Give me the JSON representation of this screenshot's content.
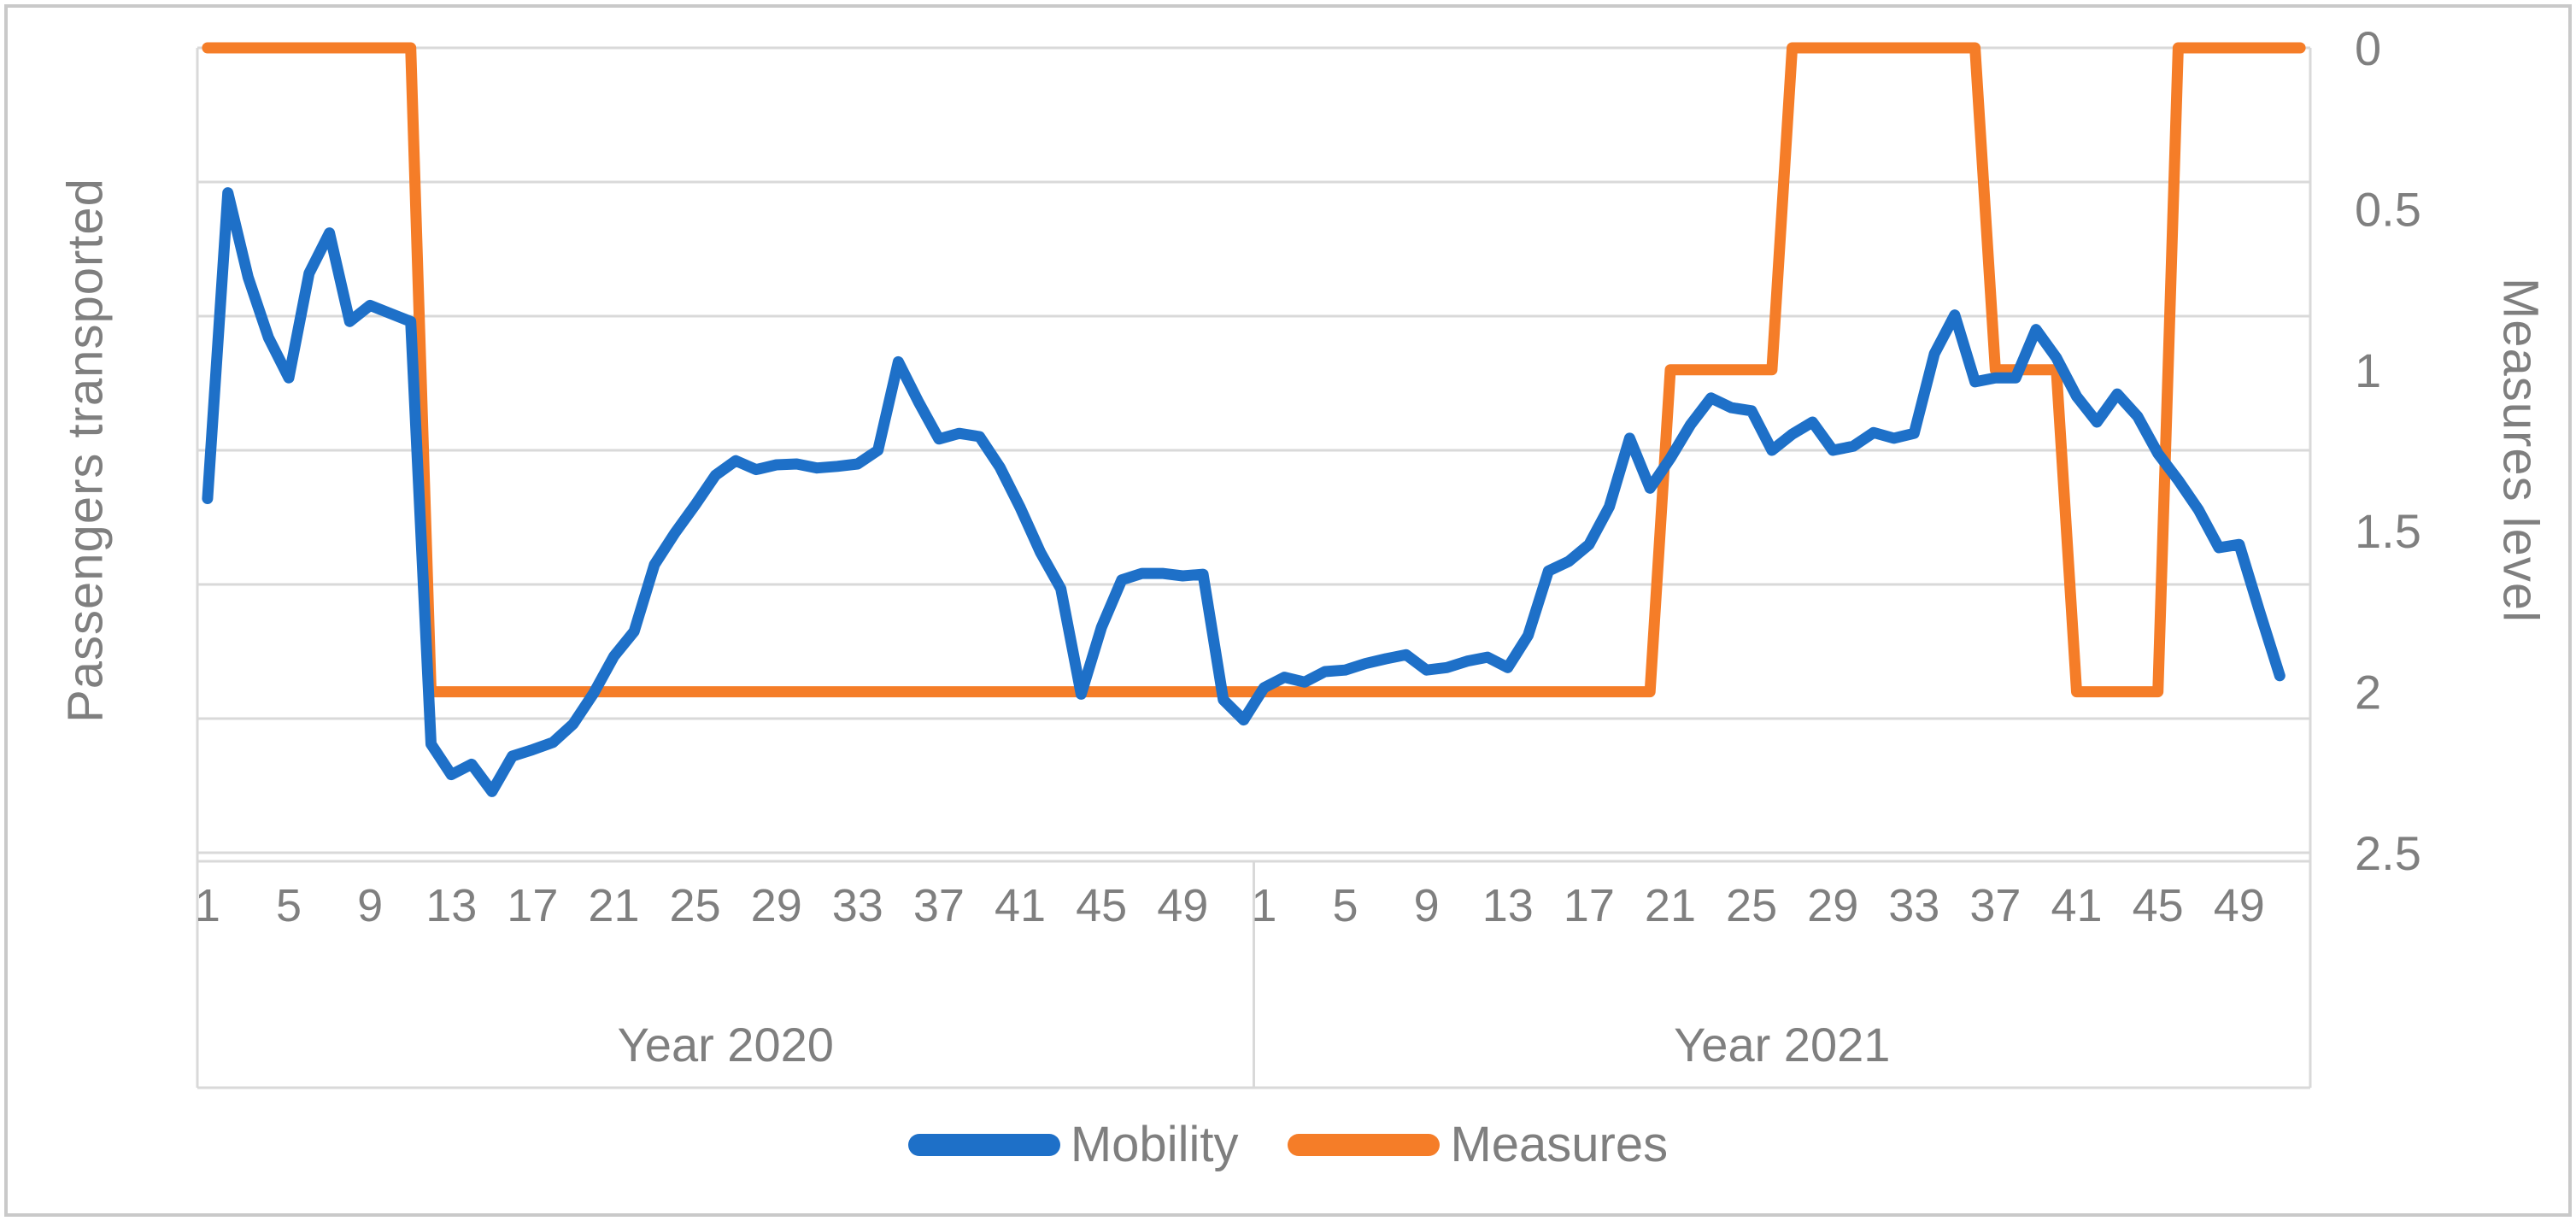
{
  "chart_data": {
    "type": "line",
    "title": "",
    "x_axis": {
      "years": [
        {
          "label": "Year 2020",
          "weeks": 52
        },
        {
          "label": "Year 2021",
          "weeks": 52
        }
      ],
      "tick_weeks": [
        1,
        5,
        9,
        13,
        17,
        21,
        25,
        29,
        33,
        37,
        41,
        45,
        49
      ]
    },
    "left_axis": {
      "title": "Passengers transported",
      "tick_labels_visible": false,
      "note": "unlabeled axis; mobility values stored as relative index 0-100 of plot height",
      "gridline_divisions": 6
    },
    "right_axis": {
      "title": "Measures level",
      "ticks": [
        "0",
        "0.5",
        "1",
        "1.5",
        "2",
        "2.5"
      ],
      "range": [
        0,
        2.5
      ],
      "orientation": "0 at top, 2.5 at bottom"
    },
    "legend": {
      "items": [
        {
          "label": "Mobility",
          "color": "#1E70C8"
        },
        {
          "label": "Measures",
          "color": "#F57D28"
        }
      ]
    },
    "series": [
      {
        "name": "Mobility",
        "axis": "left",
        "color": "#1E70C8",
        "values_2020": [
          44,
          82,
          71.5,
          64,
          59,
          72,
          77,
          66,
          68,
          67,
          66,
          13.5,
          9.7,
          11,
          7.6,
          12,
          12.8,
          13.7,
          16,
          19.8,
          24.4,
          27.5,
          35.8,
          39.7,
          43.2,
          46.9,
          48.7,
          47.6,
          48.2,
          48.3,
          47.8,
          48,
          48.3,
          50,
          61,
          56,
          51.4,
          52.1,
          51.7,
          47.9,
          42.9,
          37.3,
          32.8,
          19.7,
          28,
          33.9,
          34.7,
          34.7,
          34.4,
          34.6,
          19,
          16.5
        ],
        "values_2021": [
          20.5,
          21.8,
          21.2,
          22.5,
          22.7,
          23.5,
          24.1,
          24.6,
          22.7,
          23,
          23.8,
          24.3,
          23,
          27,
          35,
          36.2,
          38.3,
          43,
          51.5,
          45.3,
          49,
          53.2,
          56.5,
          55.3,
          54.9,
          50,
          52,
          53.5,
          50,
          50.5,
          52.2,
          51.5,
          52.1,
          62,
          66.8,
          58.5,
          59,
          59,
          65,
          61.5,
          56.7,
          53.5,
          57,
          54.2,
          49.6,
          46.3,
          42.6,
          37.9,
          38.3,
          30,
          22,
          null
        ]
      },
      {
        "name": "Measures",
        "axis": "right",
        "color": "#F57D28",
        "values_2020": [
          0,
          0,
          0,
          0,
          0,
          0,
          0,
          0,
          0,
          0,
          0,
          2,
          2,
          2,
          2,
          2,
          2,
          2,
          2,
          2,
          2,
          2,
          2,
          2,
          2,
          2,
          2,
          2,
          2,
          2,
          2,
          2,
          2,
          2,
          2,
          2,
          2,
          2,
          2,
          2,
          2,
          2,
          2,
          2,
          2,
          2,
          2,
          2,
          2,
          2,
          2,
          2
        ],
        "values_2021": [
          2,
          2,
          2,
          2,
          2,
          2,
          2,
          2,
          2,
          2,
          2,
          2,
          2,
          2,
          2,
          2,
          2,
          2,
          2,
          2,
          1,
          1,
          1,
          1,
          1,
          1,
          0,
          0,
          0,
          0,
          0,
          0,
          0,
          0,
          0,
          0,
          1,
          1,
          1,
          1,
          2,
          2,
          2,
          2,
          2,
          0,
          0,
          0,
          0,
          0,
          0,
          0
        ]
      }
    ],
    "grid": {
      "horizontal_gridlines": true,
      "color": "#D9D9D9"
    }
  },
  "frame": {
    "border_color": "#C9C9C9",
    "background": "#FFFFFF",
    "text_color": "#7F7F7F"
  }
}
